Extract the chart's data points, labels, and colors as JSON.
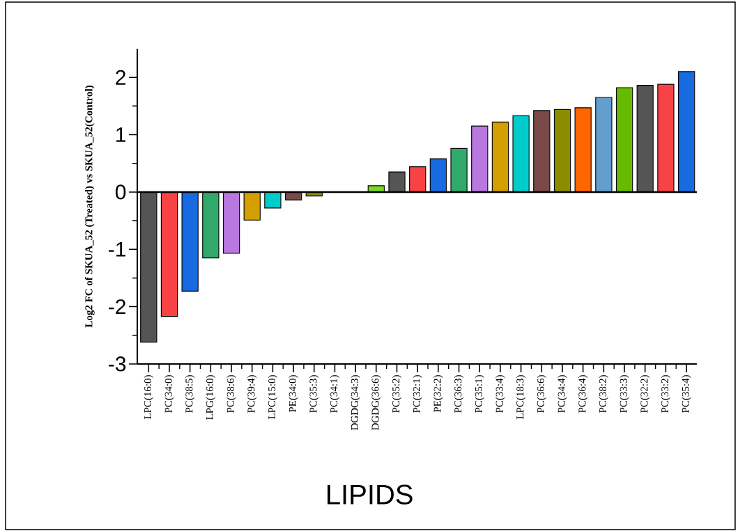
{
  "chart_data": {
    "type": "bar",
    "xlabel": "LIPIDS",
    "ylabel": "Log2 FC of SKUA_52 (Treated) vs SKUA_52(Control)",
    "categories": [
      "LPC(16:0)",
      "PC(34:0)",
      "PC(38:5)",
      "LPG(16:0)",
      "PC(38:6)",
      "PC(39:4)",
      "LPC(15:0)",
      "PE(34:0)",
      "PC(35:3)",
      "PC(34:1)",
      "DGDG(34:3)",
      "DGDG(36:6)",
      "PC(35:2)",
      "PC(32:1)",
      "PE(32:2)",
      "PC(36:3)",
      "PC(35:1)",
      "PC(33:4)",
      "LPC(18:3)",
      "PC(36:6)",
      "PC(34:4)",
      "PC(36:4)",
      "PC(38:2)",
      "PC(33:3)",
      "PC(32:2)",
      "PC(33:2)",
      "PC(35:4)"
    ],
    "values": [
      -2.62,
      -2.17,
      -1.73,
      -1.15,
      -1.07,
      -0.49,
      -0.28,
      -0.14,
      -0.07,
      0,
      0,
      0.11,
      0.35,
      0.44,
      0.58,
      0.76,
      1.15,
      1.22,
      1.33,
      1.42,
      1.44,
      1.47,
      1.65,
      1.82,
      1.86,
      1.88,
      2.1
    ],
    "colors": [
      "#555555",
      "#f74346",
      "#176ae0",
      "#30a96b",
      "#b977e0",
      "#d49f00",
      "#00cccc",
      "#7a4a4a",
      "#8c8c00",
      "#ff6600",
      "#639ecf",
      "#7fd62a",
      "#555555",
      "#f74346",
      "#176ae0",
      "#30a96b",
      "#b977e0",
      "#d49f00",
      "#00cccc",
      "#7a4a4a",
      "#8c8c00",
      "#ff6600",
      "#639ecf",
      "#66bb00",
      "#555555",
      "#f74346",
      "#176ae0"
    ],
    "ylim": [
      -3,
      2.5
    ],
    "yticks": [
      -3,
      -2,
      -1,
      0,
      1,
      2
    ],
    "ref_lines": [
      {
        "axis": "y",
        "value": 0
      }
    ]
  }
}
